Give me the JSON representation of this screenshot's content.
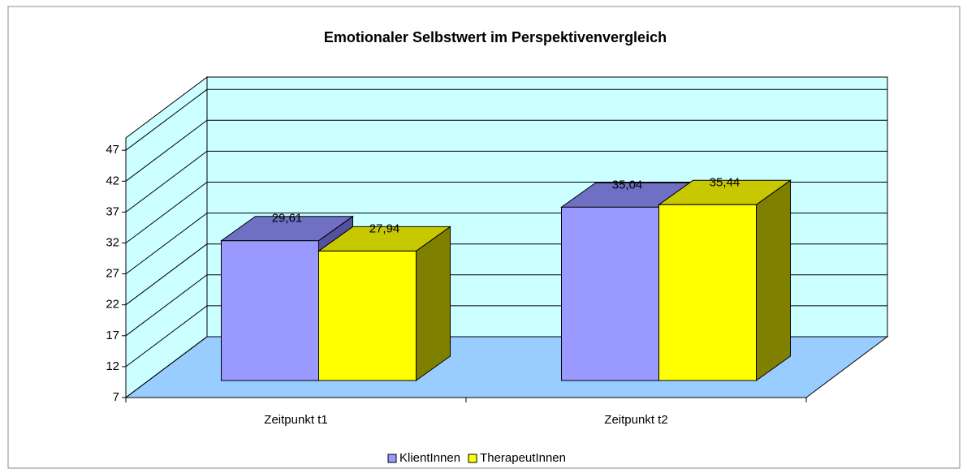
{
  "chart_data": {
    "type": "bar3d",
    "title": "Emotionaler Selbstwert im Perspektivenvergleich",
    "categories": [
      "Zeitpunkt t1",
      "Zeitpunkt t2"
    ],
    "series": [
      {
        "name": "KlientInnen",
        "color": "#9999ff",
        "top": "#6f6fc4",
        "side": "#5252a0",
        "values": [
          29.61,
          35.04
        ],
        "value_labels": [
          "29,61",
          "35,04"
        ]
      },
      {
        "name": "TherapeutInnen",
        "color": "#ffff00",
        "top": "#c8c800",
        "side": "#808000",
        "values": [
          27.94,
          35.44
        ],
        "value_labels": [
          "27,94",
          "35,44"
        ]
      }
    ],
    "ylim": [
      7,
      49
    ],
    "yticks": [
      7,
      12,
      17,
      22,
      27,
      32,
      37,
      42,
      47
    ],
    "grid": true,
    "wall_color": "#ccffff",
    "floor_color": "#99ccff",
    "legend": "bottom"
  }
}
